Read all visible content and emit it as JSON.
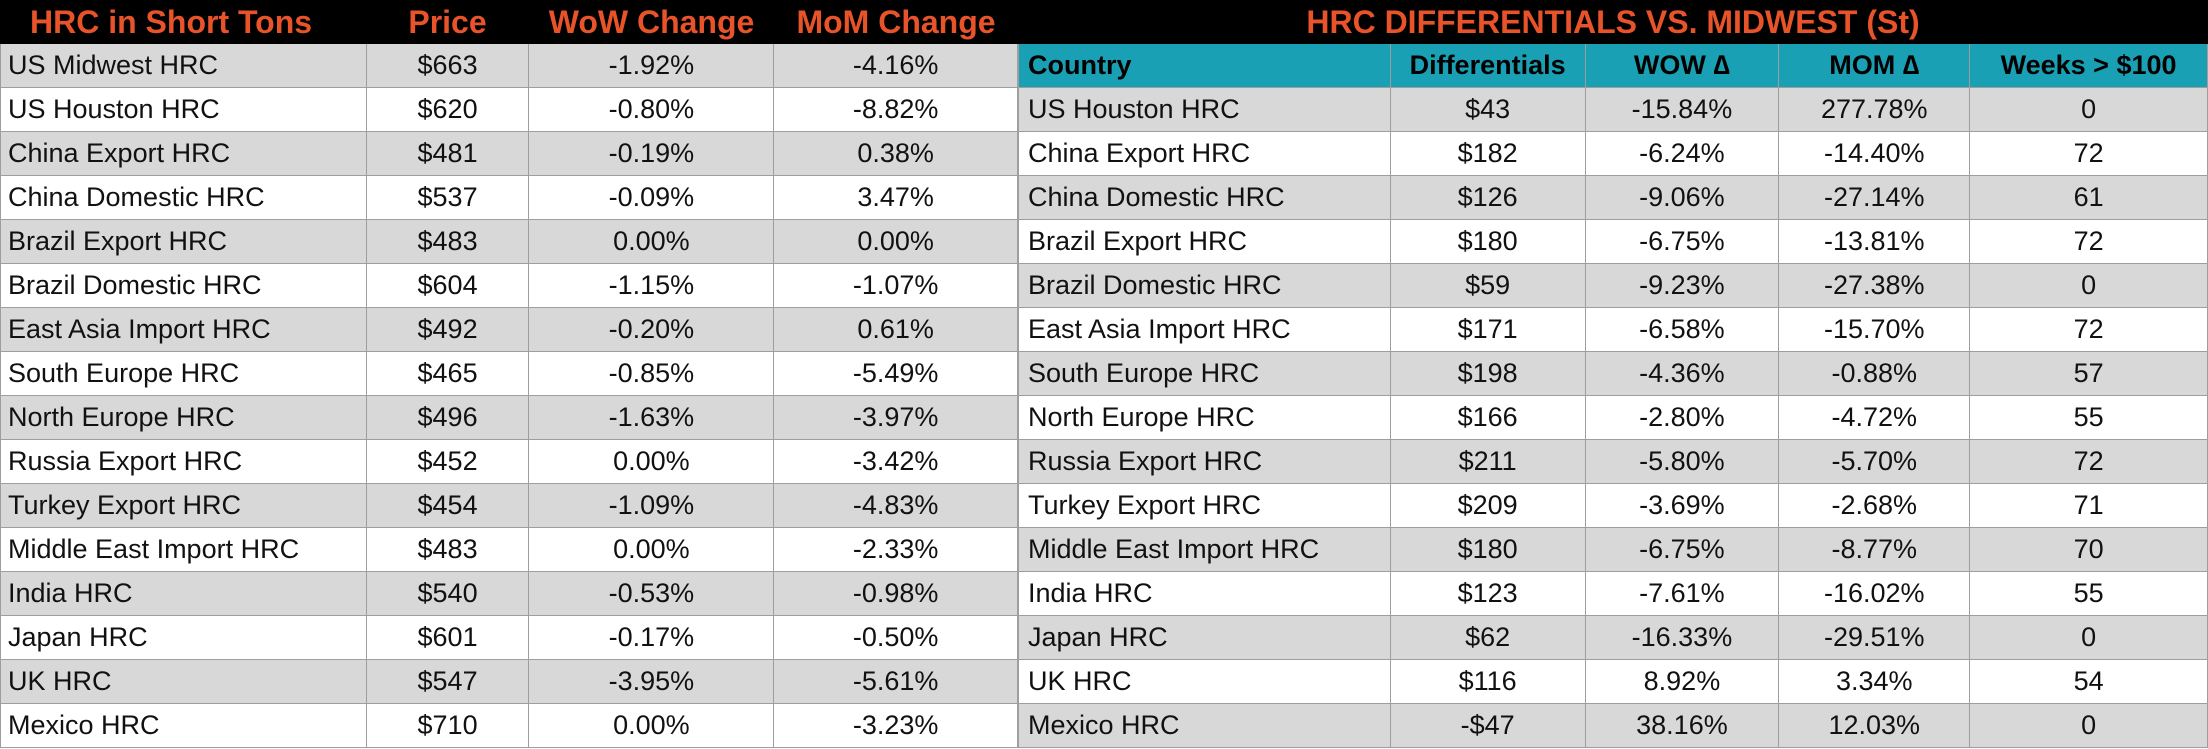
{
  "left": {
    "header": {
      "title": "HRC in Short Tons",
      "price": "Price",
      "wow": "WoW Change",
      "mom": "MoM Change"
    },
    "rows": [
      {
        "name": "US Midwest HRC",
        "price": "$663",
        "wow": "-1.92%",
        "mom": "-4.16%"
      },
      {
        "name": "US Houston HRC",
        "price": "$620",
        "wow": "-0.80%",
        "mom": "-8.82%"
      },
      {
        "name": "China Export HRC",
        "price": "$481",
        "wow": "-0.19%",
        "mom": "0.38%"
      },
      {
        "name": "China Domestic HRC",
        "price": "$537",
        "wow": "-0.09%",
        "mom": "3.47%"
      },
      {
        "name": "Brazil Export HRC",
        "price": "$483",
        "wow": "0.00%",
        "mom": "0.00%"
      },
      {
        "name": "Brazil Domestic HRC",
        "price": "$604",
        "wow": "-1.15%",
        "mom": "-1.07%"
      },
      {
        "name": "East Asia Import HRC",
        "price": "$492",
        "wow": "-0.20%",
        "mom": "0.61%"
      },
      {
        "name": "South Europe HRC",
        "price": "$465",
        "wow": "-0.85%",
        "mom": "-5.49%"
      },
      {
        "name": "North Europe HRC",
        "price": "$496",
        "wow": "-1.63%",
        "mom": "-3.97%"
      },
      {
        "name": "Russia Export HRC",
        "price": "$452",
        "wow": "0.00%",
        "mom": "-3.42%"
      },
      {
        "name": "Turkey Export HRC",
        "price": "$454",
        "wow": "-1.09%",
        "mom": "-4.83%"
      },
      {
        "name": "Middle East Import HRC",
        "price": "$483",
        "wow": "0.00%",
        "mom": "-2.33%"
      },
      {
        "name": "India HRC",
        "price": "$540",
        "wow": "-0.53%",
        "mom": "-0.98%"
      },
      {
        "name": "Japan HRC",
        "price": "$601",
        "wow": "-0.17%",
        "mom": "-0.50%"
      },
      {
        "name": "UK HRC",
        "price": "$547",
        "wow": "-3.95%",
        "mom": "-5.61%"
      },
      {
        "name": "Mexico HRC",
        "price": "$710",
        "wow": "0.00%",
        "mom": "-3.23%"
      }
    ]
  },
  "right": {
    "title": "HRC DIFFERENTIALS VS. MIDWEST (St)",
    "columns": {
      "country": "Country",
      "diff": "Differentials",
      "wow": "WOW ∆",
      "mom": "MOM ∆",
      "weeks": "Weeks > $100"
    },
    "rows": [
      {
        "name": "US Houston HRC",
        "diff": "$43",
        "wow": "-15.84%",
        "mom": "277.78%",
        "weeks": "0"
      },
      {
        "name": "China Export HRC",
        "diff": "$182",
        "wow": "-6.24%",
        "mom": "-14.40%",
        "weeks": "72"
      },
      {
        "name": "China Domestic HRC",
        "diff": "$126",
        "wow": "-9.06%",
        "mom": "-27.14%",
        "weeks": "61"
      },
      {
        "name": "Brazil Export HRC",
        "diff": "$180",
        "wow": "-6.75%",
        "mom": "-13.81%",
        "weeks": "72"
      },
      {
        "name": "Brazil Domestic HRC",
        "diff": "$59",
        "wow": "-9.23%",
        "mom": "-27.38%",
        "weeks": "0"
      },
      {
        "name": "East Asia Import HRC",
        "diff": "$171",
        "wow": "-6.58%",
        "mom": "-15.70%",
        "weeks": "72"
      },
      {
        "name": "South Europe HRC",
        "diff": "$198",
        "wow": "-4.36%",
        "mom": "-0.88%",
        "weeks": "57"
      },
      {
        "name": "North Europe HRC",
        "diff": "$166",
        "wow": "-2.80%",
        "mom": "-4.72%",
        "weeks": "55"
      },
      {
        "name": "Russia Export HRC",
        "diff": "$211",
        "wow": "-5.80%",
        "mom": "-5.70%",
        "weeks": "72"
      },
      {
        "name": "Turkey Export HRC",
        "diff": "$209",
        "wow": "-3.69%",
        "mom": "-2.68%",
        "weeks": "71"
      },
      {
        "name": "Middle East Import HRC",
        "diff": "$180",
        "wow": "-6.75%",
        "mom": "-8.77%",
        "weeks": "70"
      },
      {
        "name": "India HRC",
        "diff": "$123",
        "wow": "-7.61%",
        "mom": "-16.02%",
        "weeks": "55"
      },
      {
        "name": "Japan HRC",
        "diff": "$62",
        "wow": "-16.33%",
        "mom": "-29.51%",
        "weeks": "0"
      },
      {
        "name": "UK HRC",
        "diff": "$116",
        "wow": "8.92%",
        "mom": "3.34%",
        "weeks": "54"
      },
      {
        "name": "Mexico HRC",
        "diff": "-$47",
        "wow": "38.16%",
        "mom": "12.03%",
        "weeks": "0"
      }
    ]
  },
  "colors": {
    "header_bg": "#000000",
    "header_text": "#e8532a",
    "column_header_bg": "#1aa0b4",
    "row_shade": "#d8d8d8",
    "row_plain": "#ffffff"
  }
}
